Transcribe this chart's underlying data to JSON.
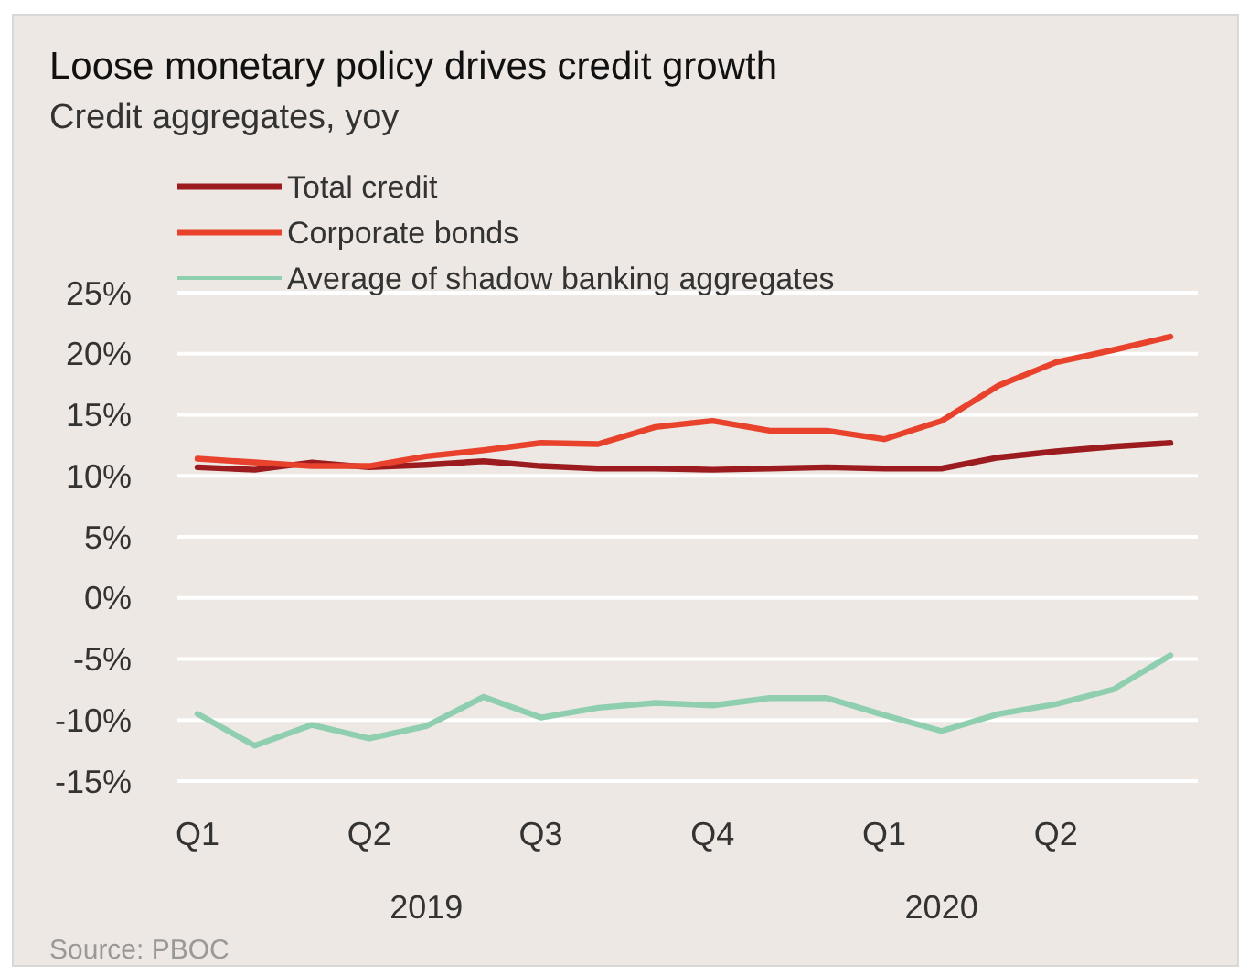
{
  "chart_data": {
    "type": "line",
    "title": "Loose monetary policy drives credit growth",
    "subtitle": "Credit aggregates, yoy",
    "categories": [
      "Q1",
      null,
      null,
      "Q2",
      null,
      null,
      "Q3",
      null,
      null,
      "Q4",
      null,
      null,
      "Q1",
      null,
      null,
      "Q2",
      null,
      null
    ],
    "series": [
      {
        "name": "Total credit",
        "color": "#9b1b1e",
        "values": [
          10.7,
          10.5,
          11.1,
          10.7,
          10.9,
          11.2,
          10.8,
          10.6,
          10.6,
          10.5,
          10.6,
          10.7,
          10.6,
          10.6,
          11.5,
          12.0,
          12.4,
          12.7
        ]
      },
      {
        "name": "Corporate bonds",
        "color": "#e8412c",
        "values": [
          11.4,
          11.1,
          10.8,
          10.8,
          11.6,
          12.1,
          12.7,
          12.6,
          14.0,
          14.5,
          13.7,
          13.7,
          13.0,
          14.5,
          17.4,
          19.3,
          20.3,
          21.4
        ]
      },
      {
        "name": "Average of shadow banking aggregates",
        "color": "#8fcfb0",
        "values": [
          -9.5,
          -12.1,
          -10.4,
          -11.5,
          -10.5,
          -8.1,
          -9.8,
          -9.0,
          -8.6,
          -8.8,
          -8.2,
          -8.2,
          -9.6,
          -10.9,
          -9.5,
          -8.7,
          -7.5,
          -4.7
        ]
      }
    ],
    "ylim": [
      -15,
      25
    ],
    "yticks": [
      {
        "value": -15,
        "label": "-15%"
      },
      {
        "value": -10,
        "label": "-10%"
      },
      {
        "value": -5,
        "label": "-5%"
      },
      {
        "value": 0,
        "label": "0%"
      },
      {
        "value": 5,
        "label": "5%"
      },
      {
        "value": 10,
        "label": "10%"
      },
      {
        "value": 15,
        "label": "15%"
      },
      {
        "value": 20,
        "label": "20%"
      },
      {
        "value": 25,
        "label": "25%"
      }
    ],
    "grid": "y",
    "legend": "top left",
    "marker": "none",
    "line_style": "solid",
    "annotations": [
      "2019",
      "2020",
      "Source: PBOC"
    ]
  }
}
